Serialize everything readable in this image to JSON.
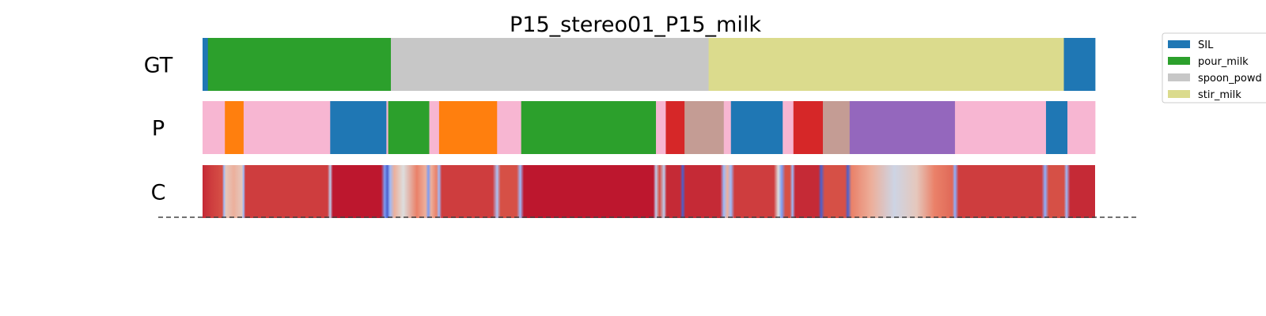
{
  "chart_data": {
    "type": "segmentation",
    "title": "P15_stereo01_P15_milk",
    "x_range": [
      0,
      1000
    ],
    "rows": [
      {
        "label": "GT",
        "segments": [
          {
            "start": 0,
            "end": 6,
            "class": "SIL"
          },
          {
            "start": 6,
            "end": 211,
            "class": "pour_milk"
          },
          {
            "start": 211,
            "end": 567,
            "class": "spoon_powder"
          },
          {
            "start": 567,
            "end": 965,
            "class": "stir_milk"
          },
          {
            "start": 965,
            "end": 1000,
            "class": "SIL"
          }
        ]
      },
      {
        "label": "P",
        "segments": [
          {
            "start": 0,
            "end": 25,
            "class": "pink"
          },
          {
            "start": 25,
            "end": 46,
            "class": "orange"
          },
          {
            "start": 46,
            "end": 143,
            "class": "pink"
          },
          {
            "start": 143,
            "end": 206,
            "class": "SIL"
          },
          {
            "start": 206,
            "end": 208,
            "class": "pink"
          },
          {
            "start": 208,
            "end": 254,
            "class": "pour_milk"
          },
          {
            "start": 254,
            "end": 265,
            "class": "pink"
          },
          {
            "start": 265,
            "end": 330,
            "class": "orange"
          },
          {
            "start": 330,
            "end": 357,
            "class": "pink"
          },
          {
            "start": 357,
            "end": 508,
            "class": "pour_milk"
          },
          {
            "start": 508,
            "end": 519,
            "class": "pink"
          },
          {
            "start": 519,
            "end": 540,
            "class": "red"
          },
          {
            "start": 540,
            "end": 584,
            "class": "brownpink"
          },
          {
            "start": 584,
            "end": 592,
            "class": "pink"
          },
          {
            "start": 592,
            "end": 650,
            "class": "SIL"
          },
          {
            "start": 650,
            "end": 662,
            "class": "pink"
          },
          {
            "start": 662,
            "end": 695,
            "class": "red"
          },
          {
            "start": 695,
            "end": 725,
            "class": "brownpink"
          },
          {
            "start": 725,
            "end": 843,
            "class": "purple"
          },
          {
            "start": 843,
            "end": 945,
            "class": "pink"
          },
          {
            "start": 945,
            "end": 969,
            "class": "SIL"
          },
          {
            "start": 969,
            "end": 1000,
            "class": "pink"
          }
        ]
      },
      {
        "label": "C",
        "confidence": [
          {
            "x": 0,
            "v": 0.9
          },
          {
            "x": 10,
            "v": 0.85
          },
          {
            "x": 22,
            "v": 0.8
          },
          {
            "x": 24,
            "v": 0.3
          },
          {
            "x": 26,
            "v": 0.55
          },
          {
            "x": 35,
            "v": 0.6
          },
          {
            "x": 44,
            "v": 0.55
          },
          {
            "x": 46,
            "v": 0.3
          },
          {
            "x": 48,
            "v": 0.85
          },
          {
            "x": 140,
            "v": 0.85
          },
          {
            "x": 143,
            "v": 0.4
          },
          {
            "x": 146,
            "v": 0.95
          },
          {
            "x": 200,
            "v": 0.95
          },
          {
            "x": 204,
            "v": 0.2
          },
          {
            "x": 207,
            "v": 0.05
          },
          {
            "x": 210,
            "v": 0.3
          },
          {
            "x": 215,
            "v": 0.6
          },
          {
            "x": 225,
            "v": 0.5
          },
          {
            "x": 240,
            "v": 0.7
          },
          {
            "x": 250,
            "v": 0.6
          },
          {
            "x": 253,
            "v": 0.2
          },
          {
            "x": 256,
            "v": 0.6
          },
          {
            "x": 262,
            "v": 0.7
          },
          {
            "x": 265,
            "v": 0.3
          },
          {
            "x": 268,
            "v": 0.85
          },
          {
            "x": 325,
            "v": 0.85
          },
          {
            "x": 330,
            "v": 0.35
          },
          {
            "x": 334,
            "v": 0.8
          },
          {
            "x": 352,
            "v": 0.8
          },
          {
            "x": 356,
            "v": 0.3
          },
          {
            "x": 360,
            "v": 0.95
          },
          {
            "x": 505,
            "v": 0.95
          },
          {
            "x": 508,
            "v": 0.4
          },
          {
            "x": 512,
            "v": 0.8
          },
          {
            "x": 517,
            "v": 0.4
          },
          {
            "x": 520,
            "v": 0.9
          },
          {
            "x": 535,
            "v": 0.9
          },
          {
            "x": 538,
            "v": 0.05
          },
          {
            "x": 541,
            "v": 0.9
          },
          {
            "x": 580,
            "v": 0.9
          },
          {
            "x": 584,
            "v": 0.3
          },
          {
            "x": 588,
            "v": 0.6
          },
          {
            "x": 592,
            "v": 0.3
          },
          {
            "x": 596,
            "v": 0.85
          },
          {
            "x": 640,
            "v": 0.85
          },
          {
            "x": 645,
            "v": 0.5
          },
          {
            "x": 649,
            "v": 0.2
          },
          {
            "x": 653,
            "v": 0.8
          },
          {
            "x": 658,
            "v": 0.8
          },
          {
            "x": 661,
            "v": 0.3
          },
          {
            "x": 664,
            "v": 0.9
          },
          {
            "x": 690,
            "v": 0.9
          },
          {
            "x": 693,
            "v": 0.05
          },
          {
            "x": 697,
            "v": 0.8
          },
          {
            "x": 720,
            "v": 0.8
          },
          {
            "x": 723,
            "v": 0.05
          },
          {
            "x": 727,
            "v": 0.7
          },
          {
            "x": 750,
            "v": 0.6
          },
          {
            "x": 775,
            "v": 0.45
          },
          {
            "x": 800,
            "v": 0.55
          },
          {
            "x": 820,
            "v": 0.7
          },
          {
            "x": 840,
            "v": 0.75
          },
          {
            "x": 843,
            "v": 0.25
          },
          {
            "x": 847,
            "v": 0.85
          },
          {
            "x": 940,
            "v": 0.85
          },
          {
            "x": 944,
            "v": 0.25
          },
          {
            "x": 948,
            "v": 0.8
          },
          {
            "x": 965,
            "v": 0.8
          },
          {
            "x": 968,
            "v": 0.3
          },
          {
            "x": 972,
            "v": 0.9
          },
          {
            "x": 1000,
            "v": 0.9
          }
        ]
      }
    ],
    "legend": [
      {
        "name": "SIL",
        "color": "#1f77b4"
      },
      {
        "name": "pour_milk",
        "color": "#2ca02c"
      },
      {
        "name": "spoon_powd",
        "color": "#c7c7c7"
      },
      {
        "name": "stir_milk",
        "color": "#dbdb8d"
      }
    ],
    "class_colors": {
      "SIL": "#1f77b4",
      "pour_milk": "#2ca02c",
      "spoon_powder": "#c7c7c7",
      "stir_milk": "#dbdb8d",
      "pink": "#f7b6d2",
      "orange": "#ff7f0e",
      "red": "#d62728",
      "brownpink": "#c49c94",
      "purple": "#9467bd"
    },
    "baseline_style": "dashed"
  }
}
